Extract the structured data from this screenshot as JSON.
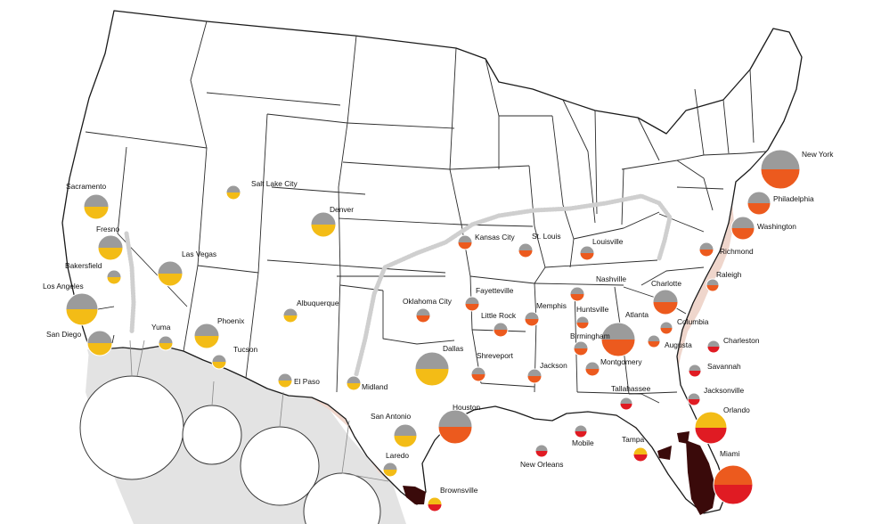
{
  "colors": {
    "gray": "#9b9b9b",
    "yellow": "#f3bc16",
    "orange": "#ec5a1e",
    "red": "#e01b23",
    "belt": "#efd6cc",
    "mexico": "#e3e3e3",
    "dark_marsh": "#3a0a0a",
    "dotted_line": "#cfcfcf"
  },
  "cities": [
    {
      "name": "New York",
      "colors": [
        "gray",
        "orange"
      ]
    },
    {
      "name": "Philadelphia",
      "colors": [
        "gray",
        "orange"
      ]
    },
    {
      "name": "Washington",
      "colors": [
        "gray",
        "orange"
      ]
    },
    {
      "name": "Richmond",
      "colors": [
        "gray",
        "orange"
      ]
    },
    {
      "name": "Raleigh",
      "colors": [
        "gray",
        "orange"
      ]
    },
    {
      "name": "Charlotte",
      "colors": [
        "gray",
        "orange"
      ]
    },
    {
      "name": "Columbia",
      "colors": [
        "gray",
        "orange"
      ]
    },
    {
      "name": "Augusta",
      "colors": [
        "gray",
        "orange"
      ]
    },
    {
      "name": "Atlanta",
      "colors": [
        "gray",
        "orange"
      ]
    },
    {
      "name": "Charleston",
      "colors": [
        "gray",
        "red"
      ]
    },
    {
      "name": "Savannah",
      "colors": [
        "gray",
        "red"
      ]
    },
    {
      "name": "Jacksonville",
      "colors": [
        "gray",
        "red"
      ]
    },
    {
      "name": "Tallahassee",
      "colors": [
        "gray",
        "red"
      ]
    },
    {
      "name": "Orlando",
      "colors": [
        "yellow",
        "red"
      ]
    },
    {
      "name": "Tampa",
      "colors": [
        "yellow",
        "red"
      ]
    },
    {
      "name": "Miami",
      "colors": [
        "orange",
        "red"
      ]
    },
    {
      "name": "Kansas City",
      "colors": [
        "gray",
        "orange"
      ]
    },
    {
      "name": "St. Louis",
      "colors": [
        "gray",
        "orange"
      ]
    },
    {
      "name": "Louisville",
      "colors": [
        "gray",
        "orange"
      ]
    },
    {
      "name": "Nashville",
      "colors": [
        "gray",
        "orange"
      ]
    },
    {
      "name": "Memphis",
      "colors": [
        "gray",
        "orange"
      ]
    },
    {
      "name": "Huntsville",
      "colors": [
        "gray",
        "orange"
      ]
    },
    {
      "name": "Birmingham",
      "colors": [
        "gray",
        "orange"
      ]
    },
    {
      "name": "Montgomery",
      "colors": [
        "gray",
        "orange"
      ]
    },
    {
      "name": "Mobile",
      "colors": [
        "gray",
        "red"
      ]
    },
    {
      "name": "New Orleans",
      "colors": [
        "gray",
        "red"
      ]
    },
    {
      "name": "Jackson",
      "colors": [
        "gray",
        "orange"
      ]
    },
    {
      "name": "Little Rock",
      "colors": [
        "gray",
        "orange"
      ]
    },
    {
      "name": "Fayetteville",
      "colors": [
        "gray",
        "orange"
      ]
    },
    {
      "name": "Oklahoma City",
      "colors": [
        "gray",
        "orange"
      ]
    },
    {
      "name": "Shreveport",
      "colors": [
        "gray",
        "orange"
      ]
    },
    {
      "name": "Dallas",
      "colors": [
        "gray",
        "yellow"
      ]
    },
    {
      "name": "Houston",
      "colors": [
        "gray",
        "orange"
      ]
    },
    {
      "name": "San Antonio",
      "colors": [
        "gray",
        "yellow"
      ]
    },
    {
      "name": "Laredo",
      "colors": [
        "gray",
        "yellow"
      ]
    },
    {
      "name": "Brownsville",
      "colors": [
        "yellow",
        "red"
      ]
    },
    {
      "name": "Midland",
      "colors": [
        "gray",
        "yellow"
      ]
    },
    {
      "name": "El Paso",
      "colors": [
        "gray",
        "yellow"
      ]
    },
    {
      "name": "Albuquerque",
      "colors": [
        "gray",
        "yellow"
      ]
    },
    {
      "name": "Denver",
      "colors": [
        "gray",
        "yellow"
      ]
    },
    {
      "name": "Salt Lake City",
      "colors": [
        "gray",
        "yellow"
      ]
    },
    {
      "name": "Las Vegas",
      "colors": [
        "gray",
        "yellow"
      ]
    },
    {
      "name": "Phoenix",
      "colors": [
        "gray",
        "yellow"
      ]
    },
    {
      "name": "Tucson",
      "colors": [
        "gray",
        "yellow"
      ]
    },
    {
      "name": "Yuma",
      "colors": [
        "gray",
        "yellow"
      ]
    },
    {
      "name": "San Diego",
      "colors": [
        "gray",
        "yellow"
      ]
    },
    {
      "name": "Los Angeles",
      "colors": [
        "gray",
        "yellow"
      ]
    },
    {
      "name": "Bakersfield",
      "colors": [
        "gray",
        "yellow"
      ]
    },
    {
      "name": "Fresno",
      "colors": [
        "gray",
        "yellow"
      ]
    },
    {
      "name": "Sacramento",
      "colors": [
        "gray",
        "yellow"
      ]
    }
  ]
}
